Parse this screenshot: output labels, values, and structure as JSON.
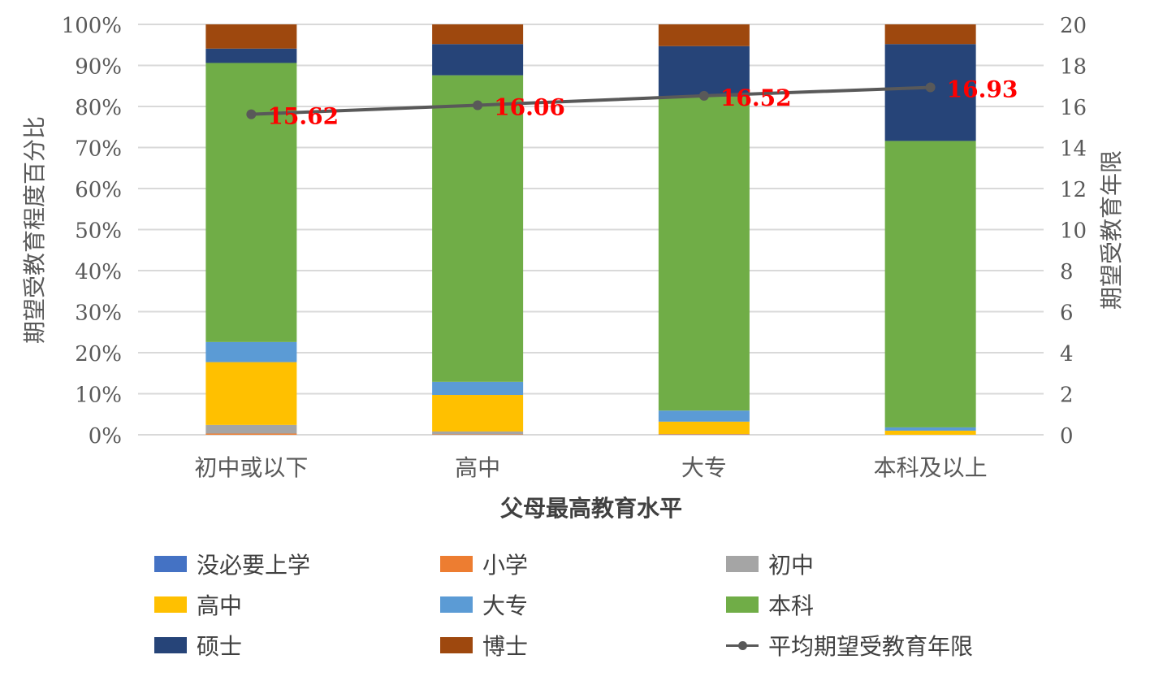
{
  "chart_data": {
    "type": "bar",
    "stacked": true,
    "categories": [
      "初中或以下",
      "高中",
      "大专",
      "本科及以上"
    ],
    "xlabel": "父母最高教育水平",
    "ylabel": "期望受教育程度百分比",
    "y2label": "期望受教育年限",
    "ylim": [
      0,
      100
    ],
    "y2lim": [
      0,
      20
    ],
    "yticks": [
      "0%",
      "10%",
      "20%",
      "30%",
      "40%",
      "50%",
      "60%",
      "70%",
      "80%",
      "90%",
      "100%"
    ],
    "y2ticks": [
      "0",
      "2",
      "4",
      "6",
      "8",
      "10",
      "12",
      "14",
      "16",
      "18",
      "20"
    ],
    "series": [
      {
        "name": "没必要上学",
        "color": "#4472C4",
        "values": [
          0.0,
          0.0,
          0.0,
          0.0
        ]
      },
      {
        "name": "小学",
        "color": "#ED7D31",
        "values": [
          0.3,
          0.1,
          0.1,
          0.0
        ]
      },
      {
        "name": "初中",
        "color": "#A5A5A5",
        "values": [
          2.1,
          0.7,
          0.1,
          0.0
        ]
      },
      {
        "name": "高中",
        "color": "#FFC000",
        "values": [
          15.3,
          8.9,
          3.0,
          1.0
        ]
      },
      {
        "name": "大专",
        "color": "#5B9BD5",
        "values": [
          4.9,
          3.2,
          2.7,
          0.8
        ]
      },
      {
        "name": "本科",
        "color": "#70AD47",
        "values": [
          68.0,
          74.7,
          76.5,
          69.8
        ]
      },
      {
        "name": "硕士",
        "color": "#264478",
        "values": [
          3.5,
          7.6,
          12.3,
          23.6
        ]
      },
      {
        "name": "博士",
        "color": "#9E480E",
        "values": [
          5.9,
          4.8,
          5.3,
          4.8
        ]
      }
    ],
    "line": {
      "name": "平均期望受教育年限",
      "color": "#595959",
      "values": [
        15.62,
        16.06,
        16.52,
        16.93
      ],
      "labels": [
        "15.62",
        "16.06",
        "16.52",
        "16.93"
      ],
      "label_color": "#FF0000"
    },
    "grid": true,
    "legend": "bottom"
  }
}
